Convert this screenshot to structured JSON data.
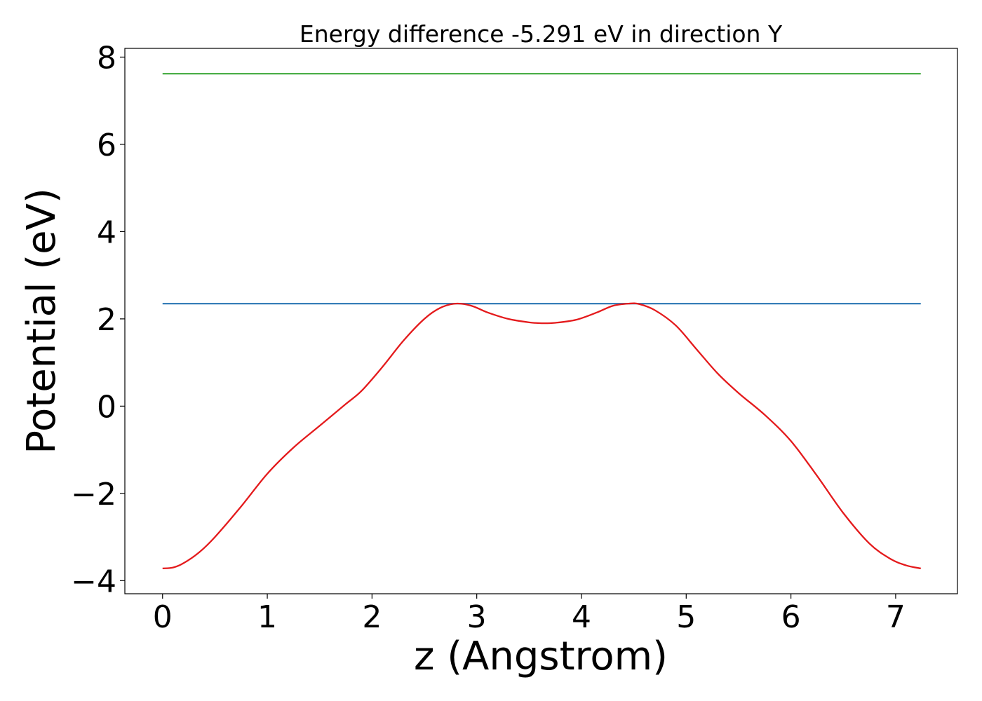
{
  "chart_data": {
    "type": "line",
    "title": "Energy difference -5.291 eV in direction Y",
    "xlabel": "z (Angstrom)",
    "ylabel": "Potential (eV)",
    "xlim": [
      -0.36,
      7.59
    ],
    "ylim": [
      -4.3,
      8.2
    ],
    "xticks": [
      0,
      1,
      2,
      3,
      4,
      5,
      6,
      7
    ],
    "xtick_labels": [
      "0",
      "1",
      "2",
      "3",
      "4",
      "5",
      "6",
      "7"
    ],
    "yticks": [
      -4,
      -2,
      0,
      2,
      4,
      6,
      8
    ],
    "ytick_labels": [
      "−4",
      "−2",
      "0",
      "2",
      "4",
      "6",
      "8"
    ],
    "grid": false,
    "legend": false,
    "series": [
      {
        "color": "#4daf4a",
        "x": [
          0,
          7.24
        ],
        "y": [
          7.62,
          7.62
        ]
      },
      {
        "color": "#377eb8",
        "x": [
          0,
          7.24
        ],
        "y": [
          2.35,
          2.35
        ]
      },
      {
        "color": "#e41a1c",
        "x": [
          0,
          0.1,
          0.2,
          0.35,
          0.5,
          0.75,
          1.0,
          1.25,
          1.5,
          1.75,
          1.9,
          2.1,
          2.3,
          2.5,
          2.65,
          2.8,
          2.95,
          3.1,
          3.3,
          3.5,
          3.62,
          3.75,
          3.95,
          4.15,
          4.3,
          4.45,
          4.55,
          4.7,
          4.9,
          5.1,
          5.3,
          5.5,
          5.75,
          6.0,
          6.25,
          6.5,
          6.75,
          6.95,
          7.1,
          7.24
        ],
        "y": [
          -3.72,
          -3.7,
          -3.6,
          -3.35,
          -3.0,
          -2.3,
          -1.55,
          -0.95,
          -0.45,
          0.05,
          0.35,
          0.9,
          1.5,
          2.0,
          2.25,
          2.35,
          2.3,
          2.15,
          2.0,
          1.92,
          1.9,
          1.91,
          1.98,
          2.15,
          2.3,
          2.35,
          2.34,
          2.2,
          1.85,
          1.3,
          0.75,
          0.3,
          -0.2,
          -0.8,
          -1.6,
          -2.45,
          -3.15,
          -3.5,
          -3.65,
          -3.72
        ]
      }
    ]
  }
}
